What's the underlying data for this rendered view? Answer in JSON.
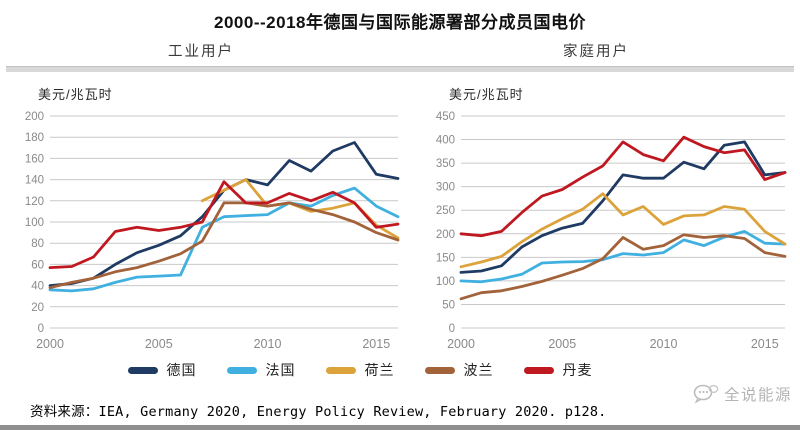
{
  "page": {
    "title": "2000--2018年德国与国际能源署部分成员国电价",
    "source_label": "资料来源：",
    "source_text": "IEA, Germany 2020, Energy Policy Review, February 2020. p128.",
    "watermark": "全说能源"
  },
  "colors": {
    "germany": "#1f3a63",
    "france": "#3fb0e0",
    "netherlands": "#dca33b",
    "poland": "#a2623a",
    "denmark": "#c01820",
    "grid": "#c9c9c9",
    "tick_text": "#8a8a8a"
  },
  "legend": [
    {
      "label": "德国",
      "color": "#1f3a63"
    },
    {
      "label": "法国",
      "color": "#3fb0e0"
    },
    {
      "label": "荷兰",
      "color": "#dca33b"
    },
    {
      "label": "波兰",
      "color": "#a2623a"
    },
    {
      "label": "丹麦",
      "color": "#c01820"
    }
  ],
  "chart_data": [
    {
      "type": "line",
      "title": "工业用户",
      "ylabel": "美元/兆瓦时",
      "xlabel": "",
      "years": [
        2000,
        2001,
        2002,
        2003,
        2004,
        2005,
        2006,
        2007,
        2008,
        2009,
        2010,
        2011,
        2012,
        2013,
        2014,
        2015,
        2016
      ],
      "xticks": [
        2000,
        2005,
        2010,
        2015
      ],
      "ylim": [
        0,
        200
      ],
      "ytick_step": 20,
      "grid": "horizontal",
      "series": [
        {
          "name": "德国",
          "color": "#1f3a63",
          "values": [
            40,
            42,
            47,
            60,
            71,
            78,
            87,
            105,
            130,
            140,
            135,
            158,
            148,
            167,
            175,
            145,
            141
          ]
        },
        {
          "name": "法国",
          "color": "#3fb0e0",
          "values": [
            36,
            35,
            37,
            43,
            48,
            49,
            50,
            95,
            105,
            106,
            107,
            118,
            115,
            125,
            132,
            115,
            105
          ]
        },
        {
          "name": "荷兰",
          "color": "#dca33b",
          "values": [
            null,
            null,
            null,
            null,
            null,
            null,
            null,
            120,
            130,
            140,
            115,
            118,
            110,
            113,
            118,
            97,
            85
          ]
        },
        {
          "name": "波兰",
          "color": "#a2623a",
          "values": [
            38,
            43,
            47,
            53,
            57,
            63,
            70,
            82,
            118,
            118,
            115,
            118,
            112,
            107,
            100,
            90,
            83
          ]
        },
        {
          "name": "丹麦",
          "color": "#c01820",
          "values": [
            57,
            58,
            67,
            91,
            95,
            92,
            95,
            100,
            138,
            118,
            118,
            127,
            120,
            128,
            118,
            95,
            98
          ]
        }
      ]
    },
    {
      "type": "line",
      "title": "家庭用户",
      "ylabel": "美元/兆瓦时",
      "xlabel": "",
      "years": [
        2000,
        2001,
        2002,
        2003,
        2004,
        2005,
        2006,
        2007,
        2008,
        2009,
        2010,
        2011,
        2012,
        2013,
        2014,
        2015,
        2016
      ],
      "xticks": [
        2000,
        2005,
        2010,
        2015
      ],
      "ylim": [
        0,
        450
      ],
      "ytick_step": 50,
      "grid": "horizontal",
      "series": [
        {
          "name": "德国",
          "color": "#1f3a63",
          "values": [
            118,
            121,
            132,
            172,
            196,
            212,
            222,
            270,
            325,
            318,
            318,
            352,
            338,
            388,
            395,
            325,
            330
          ]
        },
        {
          "name": "法国",
          "color": "#3fb0e0",
          "values": [
            100,
            98,
            104,
            114,
            138,
            140,
            141,
            145,
            158,
            155,
            160,
            187,
            175,
            193,
            205,
            180,
            178
          ]
        },
        {
          "name": "荷兰",
          "color": "#dca33b",
          "values": [
            130,
            140,
            152,
            183,
            210,
            232,
            252,
            285,
            240,
            258,
            220,
            238,
            240,
            258,
            252,
            205,
            178
          ]
        },
        {
          "name": "波兰",
          "color": "#a2623a",
          "values": [
            62,
            75,
            79,
            88,
            99,
            112,
            126,
            147,
            192,
            167,
            175,
            198,
            192,
            196,
            190,
            160,
            152
          ]
        },
        {
          "name": "丹麦",
          "color": "#c01820",
          "values": [
            200,
            196,
            205,
            245,
            280,
            294,
            320,
            344,
            395,
            368,
            355,
            405,
            385,
            372,
            378,
            315,
            330
          ]
        }
      ]
    }
  ]
}
